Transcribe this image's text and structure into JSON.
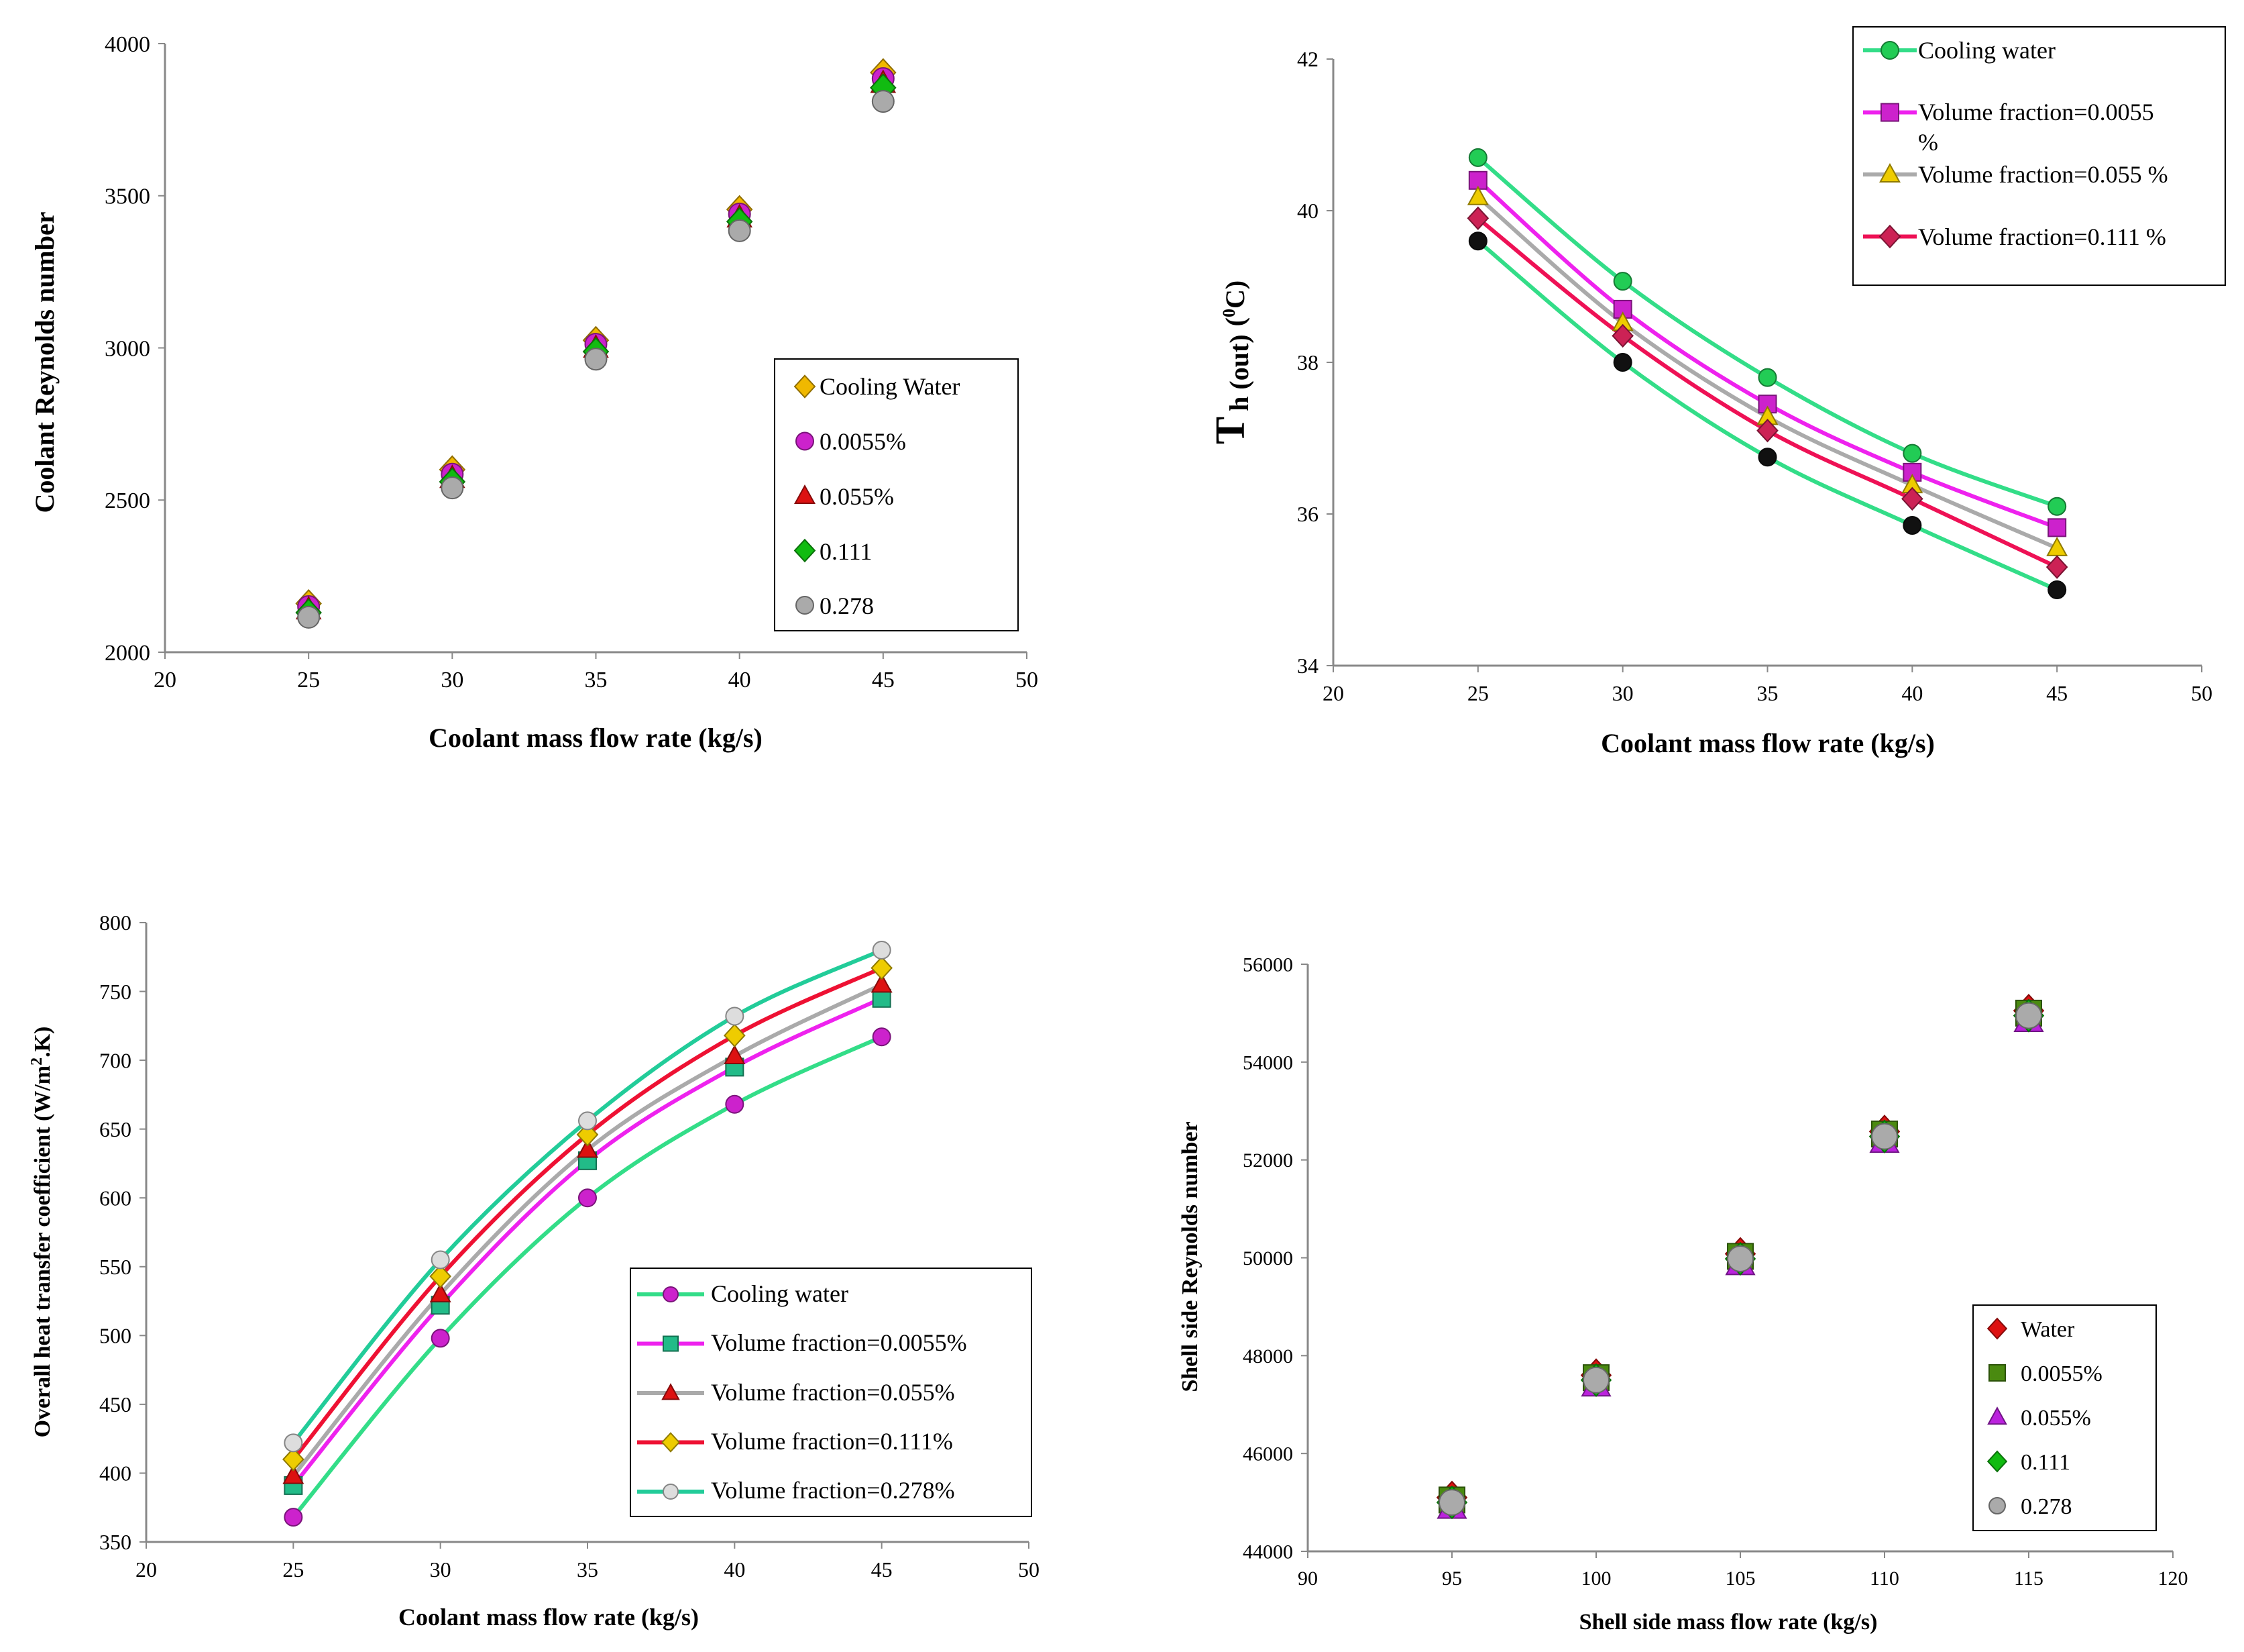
{
  "chart_data": [
    {
      "type": "scatter",
      "panel": "top-left",
      "xlabel": "Coolant mass flow rate (kg/s)",
      "ylabel": "Coolant Reynolds number",
      "xlim": [
        20,
        50
      ],
      "ylim": [
        2000,
        4000
      ],
      "xticks": [
        "20",
        "25",
        "30",
        "35",
        "40",
        "45",
        "50"
      ],
      "yticks": [
        "2000",
        "2500",
        "3000",
        "3500",
        "4000"
      ],
      "legend_position": "lower-right",
      "x": [
        25,
        30,
        35,
        40,
        45
      ],
      "series": [
        {
          "name": "Cooling Water",
          "marker": "diamond",
          "color": "#f0b800",
          "values": [
            2160,
            2600,
            3025,
            3455,
            3905
          ]
        },
        {
          "name": "0.0055%",
          "marker": "circle",
          "color": "#cc22cc",
          "values": [
            2150,
            2585,
            3012,
            3440,
            3885
          ]
        },
        {
          "name": "0.055%",
          "marker": "triangle",
          "color": "#dd1111",
          "values": [
            2140,
            2572,
            3000,
            3428,
            3870
          ]
        },
        {
          "name": "0.111",
          "marker": "diamond",
          "color": "#11bb11",
          "values": [
            2130,
            2560,
            2988,
            3415,
            3855
          ]
        },
        {
          "name": "0.278",
          "marker": "circle",
          "color": "#aaaaaa",
          "values": [
            2115,
            2540,
            2963,
            3385,
            3810
          ]
        }
      ]
    },
    {
      "type": "line",
      "panel": "top-right",
      "xlabel": "Coolant mass flow rate (kg/s)",
      "ylabel_main": "T",
      "ylabel_sub": "h (out)",
      "ylabel_unit_pre": "(",
      "ylabel_unit_sup": "0",
      "ylabel_unit_post": "C)",
      "xlim": [
        20,
        50
      ],
      "ylim": [
        34,
        42
      ],
      "xticks": [
        "20",
        "25",
        "30",
        "35",
        "40",
        "45",
        "50"
      ],
      "yticks": [
        "34",
        "36",
        "38",
        "40",
        "42"
      ],
      "legend_position": "top-right",
      "x": [
        25,
        30,
        35,
        40,
        45
      ],
      "series": [
        {
          "name": "Cooling water",
          "marker": "circle",
          "color": "#22cc55",
          "line": "#33dd88",
          "values": [
            40.7,
            39.07,
            37.8,
            36.8,
            36.1
          ]
        },
        {
          "name": "Volume fraction=0.0055 %",
          "marker": "square",
          "color": "#cc22cc",
          "line": "#ee22ee",
          "values": [
            40.4,
            38.7,
            37.45,
            36.55,
            35.82
          ]
        },
        {
          "name": "Volume fraction=0.055 %",
          "marker": "triangle",
          "color": "#eecc00",
          "line": "#aaaaaa",
          "values": [
            40.18,
            38.52,
            37.28,
            36.38,
            35.55
          ]
        },
        {
          "name": "Volume fraction=0.111 %",
          "marker": "diamond",
          "color": "#cc2255",
          "line": "#ee1155",
          "values": [
            39.9,
            38.35,
            37.1,
            36.2,
            35.3
          ]
        },
        {
          "name": "",
          "marker": "circle",
          "color": "#111111",
          "line": "#33dd88",
          "values": [
            39.6,
            38.0,
            36.75,
            35.85,
            35.0
          ]
        }
      ]
    },
    {
      "type": "line",
      "panel": "bottom-left",
      "xlabel": "Coolant mass flow rate (kg/s)",
      "ylabel_pre": "Overall heat transfer coefficient (W/m",
      "ylabel_sup": "2",
      "ylabel_post": ".K)",
      "xlim": [
        20,
        50
      ],
      "ylim": [
        350,
        800
      ],
      "xticks": [
        "20",
        "25",
        "30",
        "35",
        "40",
        "45",
        "50"
      ],
      "yticks": [
        "350",
        "400",
        "450",
        "500",
        "550",
        "600",
        "650",
        "700",
        "750",
        "800"
      ],
      "legend_position": "lower-right",
      "x": [
        25,
        30,
        35,
        40,
        45
      ],
      "series": [
        {
          "name": "Cooling water",
          "marker": "circle",
          "color": "#cc22cc",
          "line": "#33dd88",
          "values": [
            368,
            498,
            600,
            668,
            717
          ]
        },
        {
          "name": "Volume fraction=0.0055%",
          "marker": "square",
          "color": "#22bb88",
          "line": "#ee22ee",
          "values": [
            391,
            522,
            627,
            695,
            745
          ]
        },
        {
          "name": "Volume fraction=0.055%",
          "marker": "triangle",
          "color": "#dd1111",
          "line": "#aaaaaa",
          "values": [
            398,
            530,
            635,
            703,
            755
          ]
        },
        {
          "name": "Volume fraction=0.111%",
          "marker": "diamond",
          "color": "#eecc00",
          "line": "#ee1133",
          "values": [
            410,
            543,
            646,
            718,
            767
          ]
        },
        {
          "name": "Volume fraction=0.278%",
          "marker": "circle",
          "color": "#dddddd",
          "line": "#22cc99",
          "values": [
            422,
            555,
            656,
            732,
            780
          ]
        }
      ]
    },
    {
      "type": "scatter",
      "panel": "bottom-right",
      "xlabel": "Shell side mass flow rate (kg/s)",
      "ylabel": "Shell side Reynolds number",
      "xlim": [
        90,
        120
      ],
      "ylim": [
        44000,
        56000
      ],
      "xticks": [
        "90",
        "95",
        "100",
        "105",
        "110",
        "115",
        "120"
      ],
      "yticks": [
        "44000",
        "46000",
        "48000",
        "50000",
        "52000",
        "54000",
        "56000"
      ],
      "legend_position": "lower-right",
      "x": [
        95,
        100,
        105,
        110,
        115
      ],
      "series": [
        {
          "name": "Water",
          "marker": "diamond",
          "color": "#dd1111",
          "values": [
            45100,
            47600,
            50080,
            52580,
            55050
          ]
        },
        {
          "name": "0.0055%",
          "marker": "square",
          "color": "#4a8a10",
          "values": [
            45050,
            47550,
            50030,
            52530,
            55000
          ]
        },
        {
          "name": "0.055%",
          "marker": "triangle",
          "color": "#bb22dd",
          "values": [
            44900,
            47400,
            49880,
            52380,
            54850
          ]
        },
        {
          "name": "0.111",
          "marker": "diamond",
          "color": "#11bb11",
          "values": [
            45000,
            47500,
            49980,
            52480,
            54950
          ]
        },
        {
          "name": "0.278",
          "marker": "circle",
          "color": "#aaaaaa",
          "values": [
            45000,
            47500,
            49980,
            52480,
            54950
          ]
        }
      ]
    }
  ]
}
